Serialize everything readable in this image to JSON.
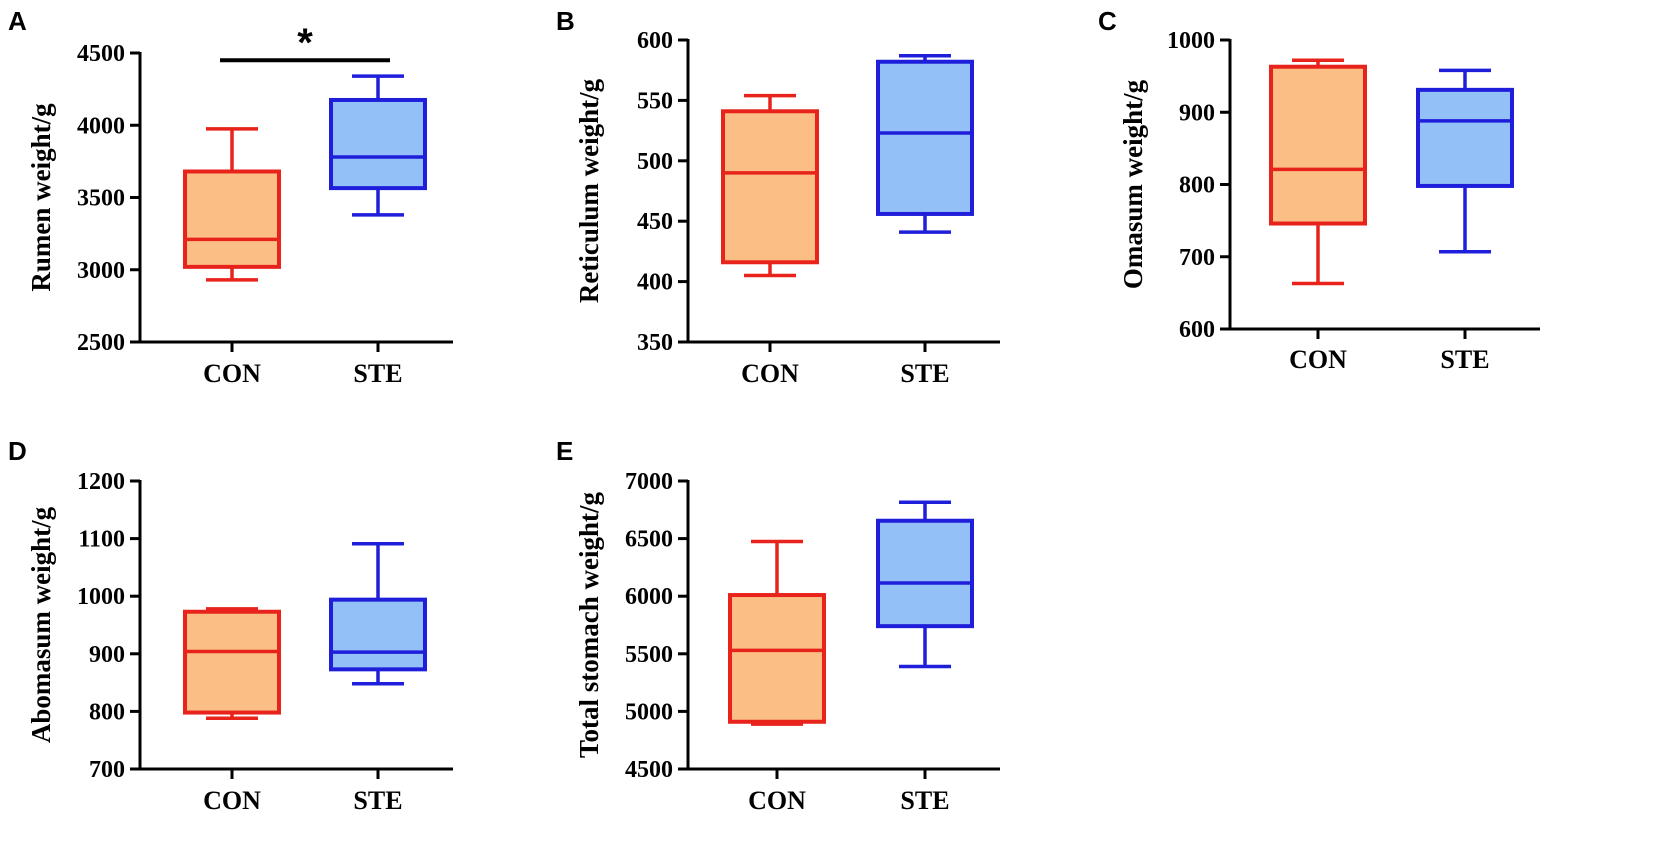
{
  "chart_data": [
    {
      "panel": "A",
      "type": "box",
      "ylabel": "Rumen weight/g",
      "ylim": [
        2500,
        4500
      ],
      "ticks": [
        2500,
        3000,
        3500,
        4000,
        4500
      ],
      "categories": [
        "CON",
        "STE"
      ],
      "series": [
        {
          "name": "CON",
          "min": 2930,
          "q1": 3020,
          "median": 3210,
          "q3": 3680,
          "max": 3975
        },
        {
          "name": "STE",
          "min": 3380,
          "q1": 3565,
          "median": 3780,
          "q3": 4175,
          "max": 4340
        }
      ],
      "significance": {
        "label": "*",
        "between": [
          "CON",
          "STE"
        ],
        "y": 4450
      }
    },
    {
      "panel": "B",
      "type": "box",
      "ylabel": "Reticulum weight/g",
      "ylim": [
        350,
        600
      ],
      "ticks": [
        350,
        400,
        450,
        500,
        550,
        600
      ],
      "categories": [
        "CON",
        "STE"
      ],
      "series": [
        {
          "name": "CON",
          "min": 405,
          "q1": 416,
          "median": 490,
          "q3": 541,
          "max": 554
        },
        {
          "name": "STE",
          "min": 441,
          "q1": 456,
          "median": 523,
          "q3": 582,
          "max": 587
        }
      ]
    },
    {
      "panel": "C",
      "type": "box",
      "ylabel": "Omasum weight/g",
      "ylim": [
        600,
        1000
      ],
      "ticks": [
        600,
        700,
        800,
        900,
        1000
      ],
      "categories": [
        "CON",
        "STE"
      ],
      "series": [
        {
          "name": "CON",
          "min": 663,
          "q1": 746,
          "median": 821,
          "q3": 963,
          "max": 972
        },
        {
          "name": "STE",
          "min": 707,
          "q1": 798,
          "median": 888,
          "q3": 931,
          "max": 958
        }
      ]
    },
    {
      "panel": "D",
      "type": "box",
      "ylabel": "Abomasum weight/g",
      "ylim": [
        700,
        1200
      ],
      "ticks": [
        700,
        800,
        900,
        1000,
        1100,
        1200
      ],
      "categories": [
        "CON",
        "STE"
      ],
      "series": [
        {
          "name": "CON",
          "min": 788,
          "q1": 798,
          "median": 904,
          "q3": 973,
          "max": 978
        },
        {
          "name": "STE",
          "min": 848,
          "q1": 873,
          "median": 903,
          "q3": 994,
          "max": 1091
        }
      ]
    },
    {
      "panel": "E",
      "type": "box",
      "ylabel": "Total stomach weight/g",
      "ylim": [
        4500,
        7000
      ],
      "ticks": [
        4500,
        5000,
        5500,
        6000,
        6500,
        7000
      ],
      "categories": [
        "CON",
        "STE"
      ],
      "series": [
        {
          "name": "CON",
          "min": 4890,
          "q1": 4910,
          "median": 5530,
          "q3": 6010,
          "max": 6475
        },
        {
          "name": "STE",
          "min": 5390,
          "q1": 5740,
          "median": 6115,
          "q3": 6655,
          "max": 6815
        }
      ]
    }
  ],
  "colors": {
    "CON": {
      "stroke": "#e8231c",
      "fill": "#fbbf85"
    },
    "STE": {
      "stroke": "#1f1fdb",
      "fill": "#93c0f6"
    },
    "axis": "#000000"
  }
}
